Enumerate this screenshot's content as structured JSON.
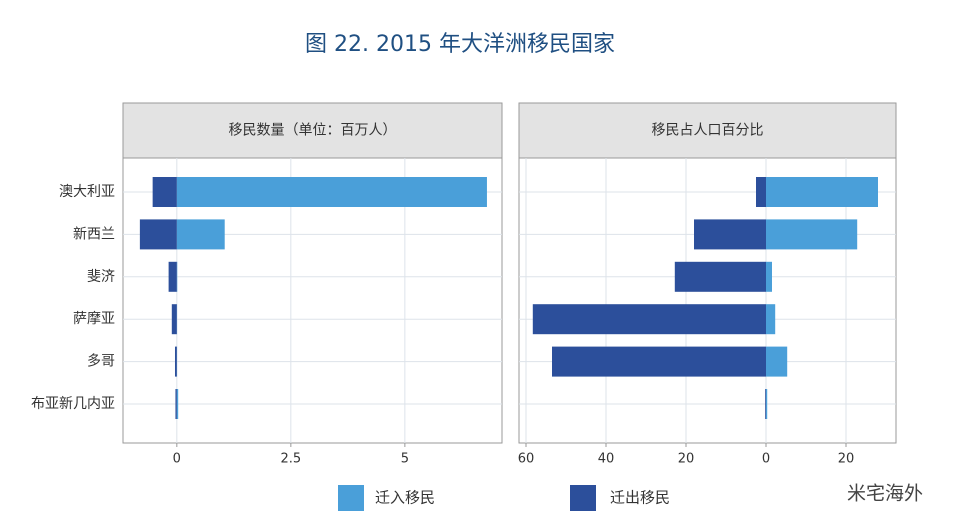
{
  "title": "图 22. 2015 年大洋洲移民国家",
  "watermark": "米宅海外",
  "chart_data": [
    {
      "type": "bar",
      "orientation": "horizontal",
      "subtitle": "移民数量（单位：百万人）",
      "categories": [
        "澳大利亚",
        "新西兰",
        "斐济",
        "萨摩亚",
        "多哥",
        "布亚新几内亚"
      ],
      "series": [
        {
          "name": "迁入移民",
          "color": "#4a9fd9",
          "values": [
            6.8,
            1.05,
            0.01,
            0.005,
            0.005,
            0.03
          ]
        },
        {
          "name": "迁出移民",
          "color": "#2c4f9b",
          "values": [
            -0.53,
            -0.81,
            -0.18,
            -0.11,
            -0.04,
            -0.03
          ]
        }
      ],
      "xlim": [
        -1.18,
        7.13
      ],
      "xticks": [
        0,
        2.5,
        5
      ],
      "grid": true
    },
    {
      "type": "bar",
      "orientation": "horizontal",
      "subtitle": "移民占人口百分比",
      "series": [
        {
          "color": "#4a9fd9",
          "values": [
            28,
            22.8,
            1.5,
            2.3,
            5.3,
            0.3
          ]
        },
        {
          "color": "#2c4f9b",
          "values": [
            -2.5,
            -18,
            -22.8,
            -58.3,
            -53.5,
            -0.2
          ]
        }
      ],
      "xlim": [
        -61.75,
        32.5
      ],
      "xticks": [
        {
          "value": -60,
          "label": "60"
        },
        {
          "value": -40,
          "label": "40"
        },
        {
          "value": -20,
          "label": "20"
        },
        0,
        20
      ],
      "grid": true
    }
  ]
}
